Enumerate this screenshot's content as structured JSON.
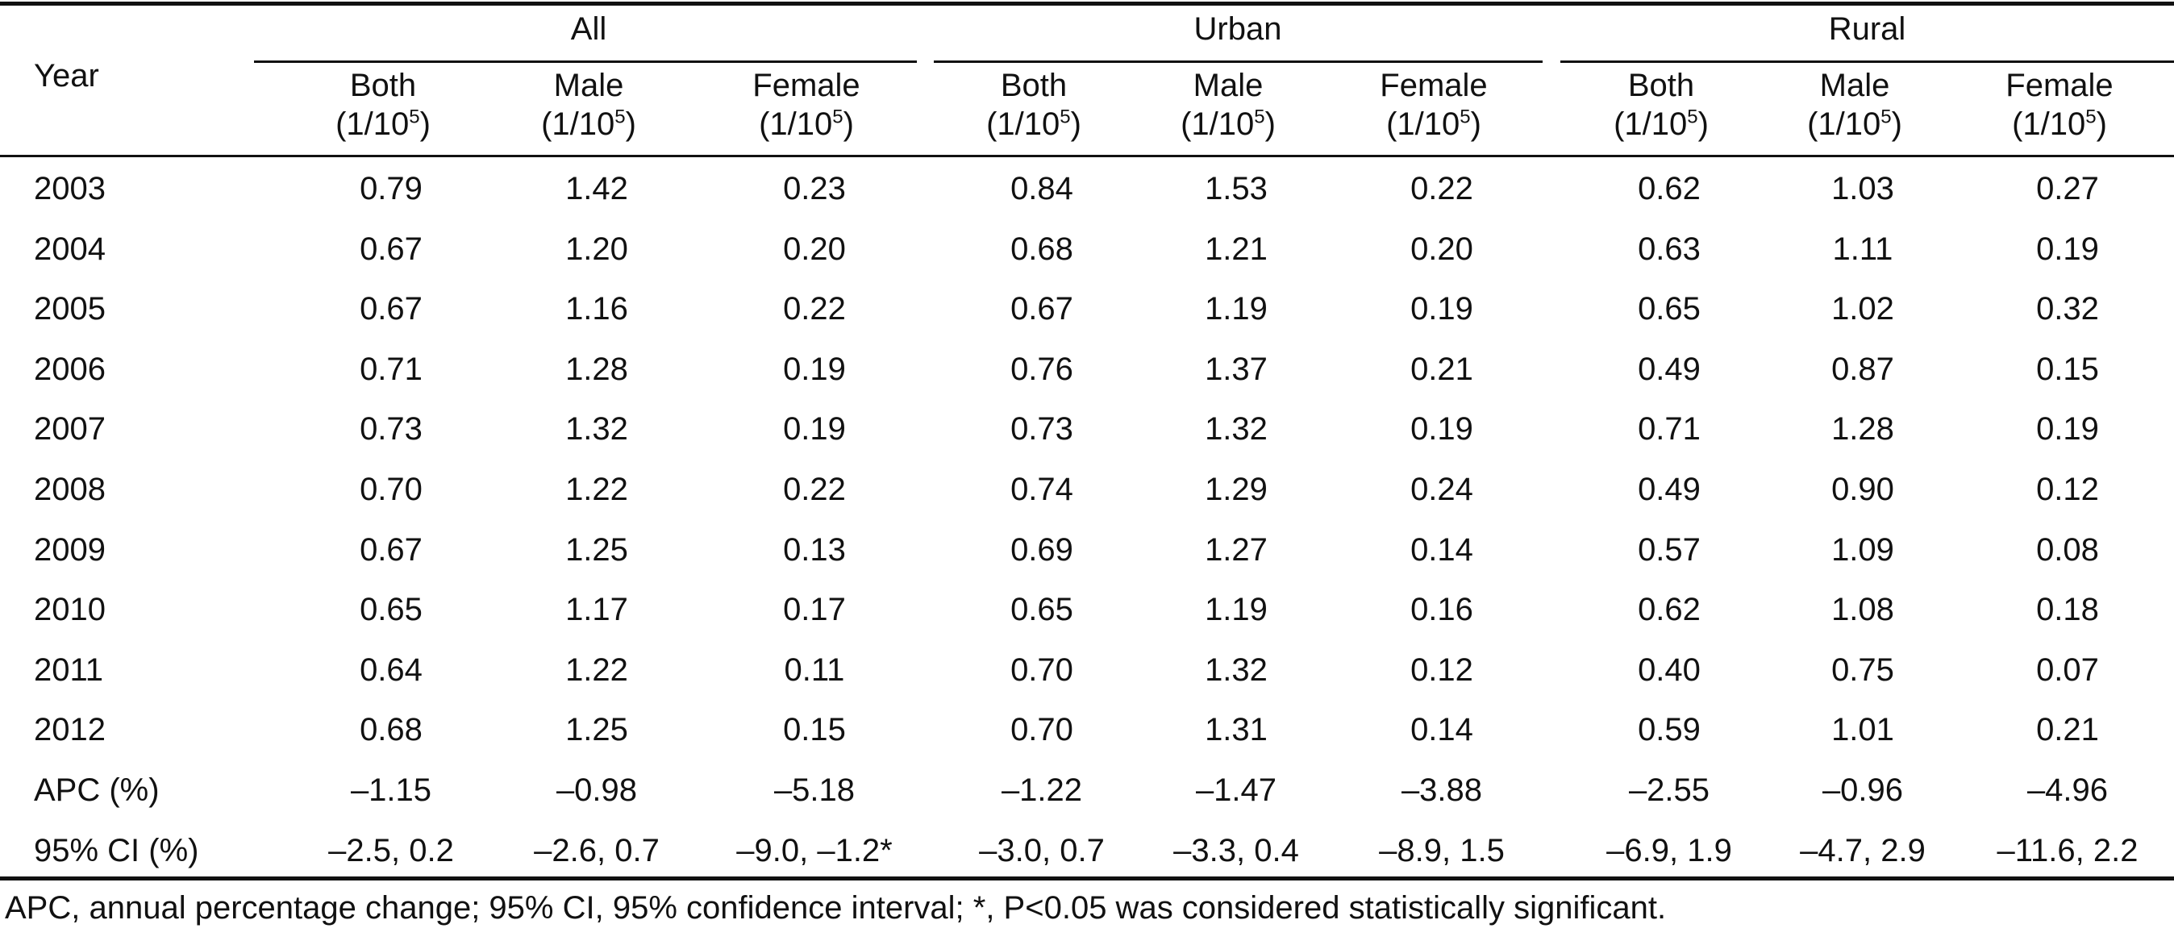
{
  "table": {
    "year_header": "Year",
    "groups": [
      "All",
      "Urban",
      "Rural"
    ],
    "subheaders": [
      {
        "label": "Both",
        "unit_base": "(1/10",
        "unit_exp": "5",
        "unit_close": ")"
      },
      {
        "label": "Male",
        "unit_base": "(1/10",
        "unit_exp": "5",
        "unit_close": ")"
      },
      {
        "label": "Female",
        "unit_base": "(1/10",
        "unit_exp": "5",
        "unit_close": ")"
      },
      {
        "label": "Both",
        "unit_base": "(1/10",
        "unit_exp": "5",
        "unit_close": ")"
      },
      {
        "label": "Male",
        "unit_base": "(1/10",
        "unit_exp": "5",
        "unit_close": ")"
      },
      {
        "label": "Female",
        "unit_base": "(1/10",
        "unit_exp": "5",
        "unit_close": ")"
      },
      {
        "label": "Both",
        "unit_base": "(1/10",
        "unit_exp": "5",
        "unit_close": ")"
      },
      {
        "label": "Male",
        "unit_base": "(1/10",
        "unit_exp": "5",
        "unit_close": ")"
      },
      {
        "label": "Female",
        "unit_base": "(1/10",
        "unit_exp": "5",
        "unit_close": ")"
      }
    ],
    "rows": [
      {
        "year": "2003",
        "values": [
          "0.79",
          "1.42",
          "0.23",
          "0.84",
          "1.53",
          "0.22",
          "0.62",
          "1.03",
          "0.27"
        ]
      },
      {
        "year": "2004",
        "values": [
          "0.67",
          "1.20",
          "0.20",
          "0.68",
          "1.21",
          "0.20",
          "0.63",
          "1.11",
          "0.19"
        ]
      },
      {
        "year": "2005",
        "values": [
          "0.67",
          "1.16",
          "0.22",
          "0.67",
          "1.19",
          "0.19",
          "0.65",
          "1.02",
          "0.32"
        ]
      },
      {
        "year": "2006",
        "values": [
          "0.71",
          "1.28",
          "0.19",
          "0.76",
          "1.37",
          "0.21",
          "0.49",
          "0.87",
          "0.15"
        ]
      },
      {
        "year": "2007",
        "values": [
          "0.73",
          "1.32",
          "0.19",
          "0.73",
          "1.32",
          "0.19",
          "0.71",
          "1.28",
          "0.19"
        ]
      },
      {
        "year": "2008",
        "values": [
          "0.70",
          "1.22",
          "0.22",
          "0.74",
          "1.29",
          "0.24",
          "0.49",
          "0.90",
          "0.12"
        ]
      },
      {
        "year": "2009",
        "values": [
          "0.67",
          "1.25",
          "0.13",
          "0.69",
          "1.27",
          "0.14",
          "0.57",
          "1.09",
          "0.08"
        ]
      },
      {
        "year": "2010",
        "values": [
          "0.65",
          "1.17",
          "0.17",
          "0.65",
          "1.19",
          "0.16",
          "0.62",
          "1.08",
          "0.18"
        ]
      },
      {
        "year": "2011",
        "values": [
          "0.64",
          "1.22",
          "0.11",
          "0.70",
          "1.32",
          "0.12",
          "0.40",
          "0.75",
          "0.07"
        ]
      },
      {
        "year": "2012",
        "values": [
          "0.68",
          "1.25",
          "0.15",
          "0.70",
          "1.31",
          "0.14",
          "0.59",
          "1.01",
          "0.21"
        ]
      },
      {
        "year": "APC (%)",
        "values": [
          "–1.15",
          "–0.98",
          "–5.18",
          "–1.22",
          "–1.47",
          "–3.88",
          "–2.55",
          "–0.96",
          "–4.96"
        ]
      },
      {
        "year": "95% CI (%)",
        "values": [
          "–2.5, 0.2",
          "–2.6, 0.7",
          "–9.0, –1.2*",
          "–3.0, 0.7",
          "–3.3, 0.4",
          "–8.9, 1.5",
          "–6.9, 1.9",
          "–4.7, 2.9",
          "–11.6, 2.2"
        ]
      }
    ],
    "footnote": "APC, annual percentage change; 95% CI, 95% confidence interval; *, P<0.05 was considered statistically significant."
  }
}
